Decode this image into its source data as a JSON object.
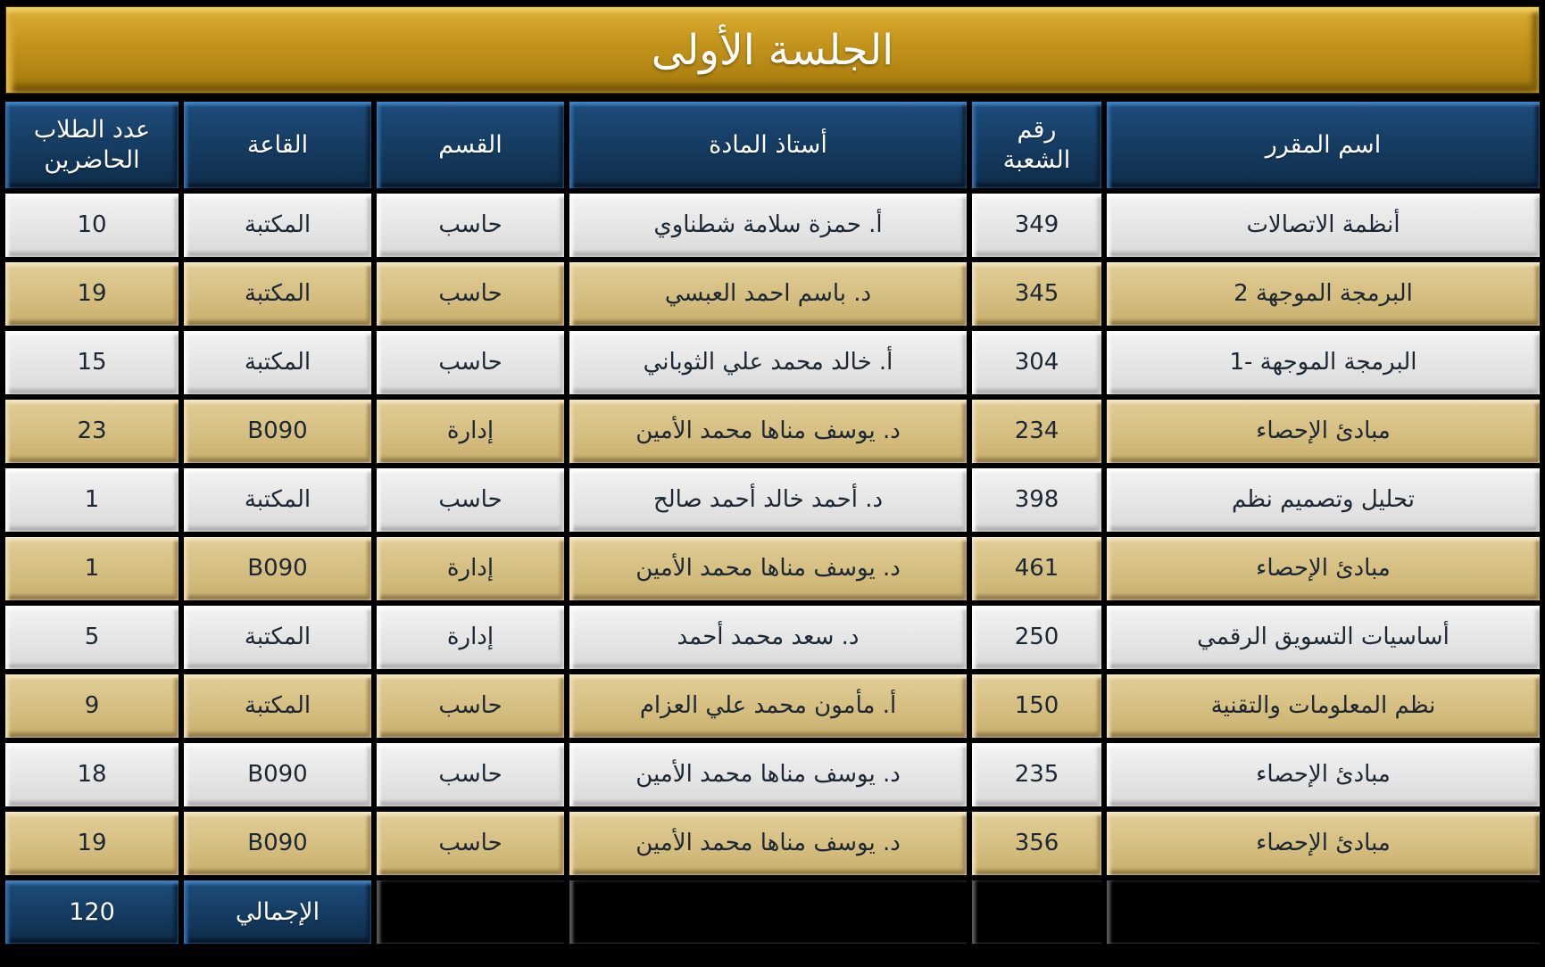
{
  "banner": {
    "title": "الجلسة الأولى"
  },
  "table": {
    "headers": {
      "course": "اسم المقرر",
      "section": "رقم الشعبة",
      "instructor": "أستاذ المادة",
      "department": "القسم",
      "hall": "القاعة",
      "attendees": "عدد الطلاب الحاضرين"
    },
    "rows": [
      {
        "course": "أنظمة الاتصالات",
        "section": "349",
        "instructor": "أ. حمزة سلامة شطناوي",
        "department": "حاسب",
        "hall": "المكتبة",
        "attendees": "10"
      },
      {
        "course": "البرمجة الموجهة 2",
        "section": "345",
        "instructor": "د. باسم احمد  العبسي",
        "department": "حاسب",
        "hall": "المكتبة",
        "attendees": "19"
      },
      {
        "course": "البرمجة الموجهة -1",
        "section": "304",
        "instructor": "أ. خالد محمد علي الثوباني",
        "department": "حاسب",
        "hall": "المكتبة",
        "attendees": "15"
      },
      {
        "course": "مبادئ الإحصاء",
        "section": "234",
        "instructor": "د. يوسف مناها محمد الأمين",
        "department": "إدارة",
        "hall": "B090",
        "attendees": "23"
      },
      {
        "course": "تحليل وتصميم نظم",
        "section": "398",
        "instructor": "د. أحمد خالد أحمد صالح",
        "department": "حاسب",
        "hall": "المكتبة",
        "attendees": "1"
      },
      {
        "course": "مبادئ الإحصاء",
        "section": "461",
        "instructor": "د. يوسف مناها محمد الأمين",
        "department": "إدارة",
        "hall": "B090",
        "attendees": "1"
      },
      {
        "course": "أساسيات التسويق الرقمي",
        "section": "250",
        "instructor": "د. سعد محمد أحمد",
        "department": "إدارة",
        "hall": "المكتبة",
        "attendees": "5"
      },
      {
        "course": "نظم المعلومات والتقنية",
        "section": "150",
        "instructor": "أ. مأمون محمد علي العزام",
        "department": "حاسب",
        "hall": "المكتبة",
        "attendees": "9"
      },
      {
        "course": "مبادئ الإحصاء",
        "section": "235",
        "instructor": "د. يوسف مناها محمد الأمين",
        "department": "حاسب",
        "hall": "B090",
        "attendees": "18"
      },
      {
        "course": "مبادئ الإحصاء",
        "section": "356",
        "instructor": "د. يوسف مناها محمد الأمين",
        "department": "حاسب",
        "hall": "B090",
        "attendees": "19"
      }
    ],
    "total": {
      "label": "الإجمالي",
      "value": "120"
    }
  },
  "colors": {
    "banner_gold": "#BE8F1F",
    "header_navy": "#153B60",
    "row_light": "#E5E5E5",
    "row_tan": "#D5BE81",
    "text_dark": "#1C2733",
    "text_light": "#FFFFFF",
    "background": "#000000"
  }
}
